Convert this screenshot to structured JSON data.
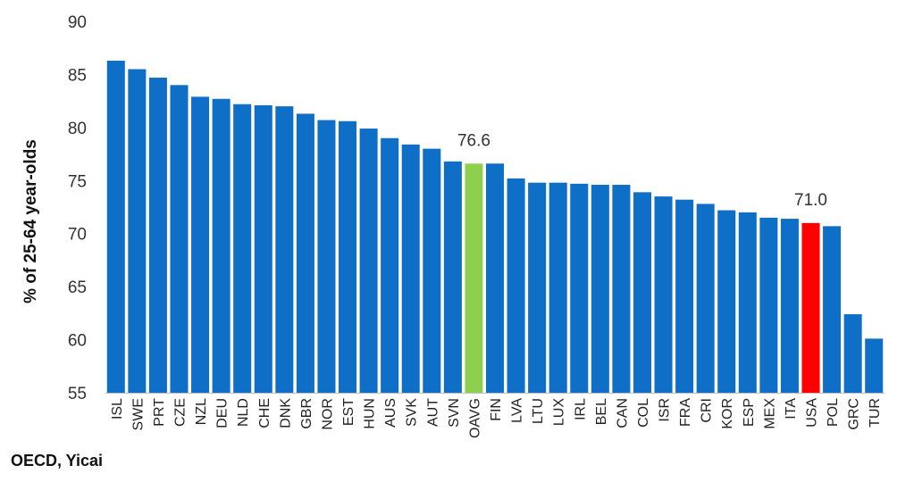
{
  "chart_data": {
    "type": "bar",
    "ylabel": "% of 25-64 year-olds",
    "ylim": [
      55,
      90
    ],
    "yticks": [
      55,
      60,
      65,
      70,
      75,
      80,
      85,
      90
    ],
    "grid": false,
    "categories": [
      "ISL",
      "SWE",
      "PRT",
      "CZE",
      "NZL",
      "DEU",
      "NLD",
      "CHE",
      "DNK",
      "GBR",
      "NOR",
      "EST",
      "HUN",
      "AUS",
      "SVK",
      "AUT",
      "SVN",
      "OAVG",
      "FIN",
      "LVA",
      "LTU",
      "LUX",
      "IRL",
      "BEL",
      "CAN",
      "COL",
      "ISR",
      "FRA",
      "CRI",
      "KOR",
      "ESP",
      "MEX",
      "ITA",
      "USA",
      "POL",
      "GRC",
      "TUR"
    ],
    "values": [
      86.3,
      85.5,
      84.7,
      84.0,
      82.9,
      82.7,
      82.2,
      82.1,
      82.0,
      81.3,
      80.7,
      80.6,
      79.9,
      79.0,
      78.4,
      78.0,
      76.8,
      76.6,
      76.6,
      75.2,
      74.8,
      74.8,
      74.7,
      74.6,
      74.6,
      73.9,
      73.5,
      73.2,
      72.8,
      72.2,
      72.0,
      71.5,
      71.4,
      71.0,
      70.7,
      62.4,
      60.1
    ],
    "colors": {
      "default": "#0f6fc6",
      "OAVG": "#8fcf4f",
      "USA": "#ff0000"
    },
    "data_labels": [
      {
        "category": "OAVG",
        "text": "76.6"
      },
      {
        "category": "USA",
        "text": "71.0"
      }
    ]
  },
  "source": "OECD, Yicai"
}
